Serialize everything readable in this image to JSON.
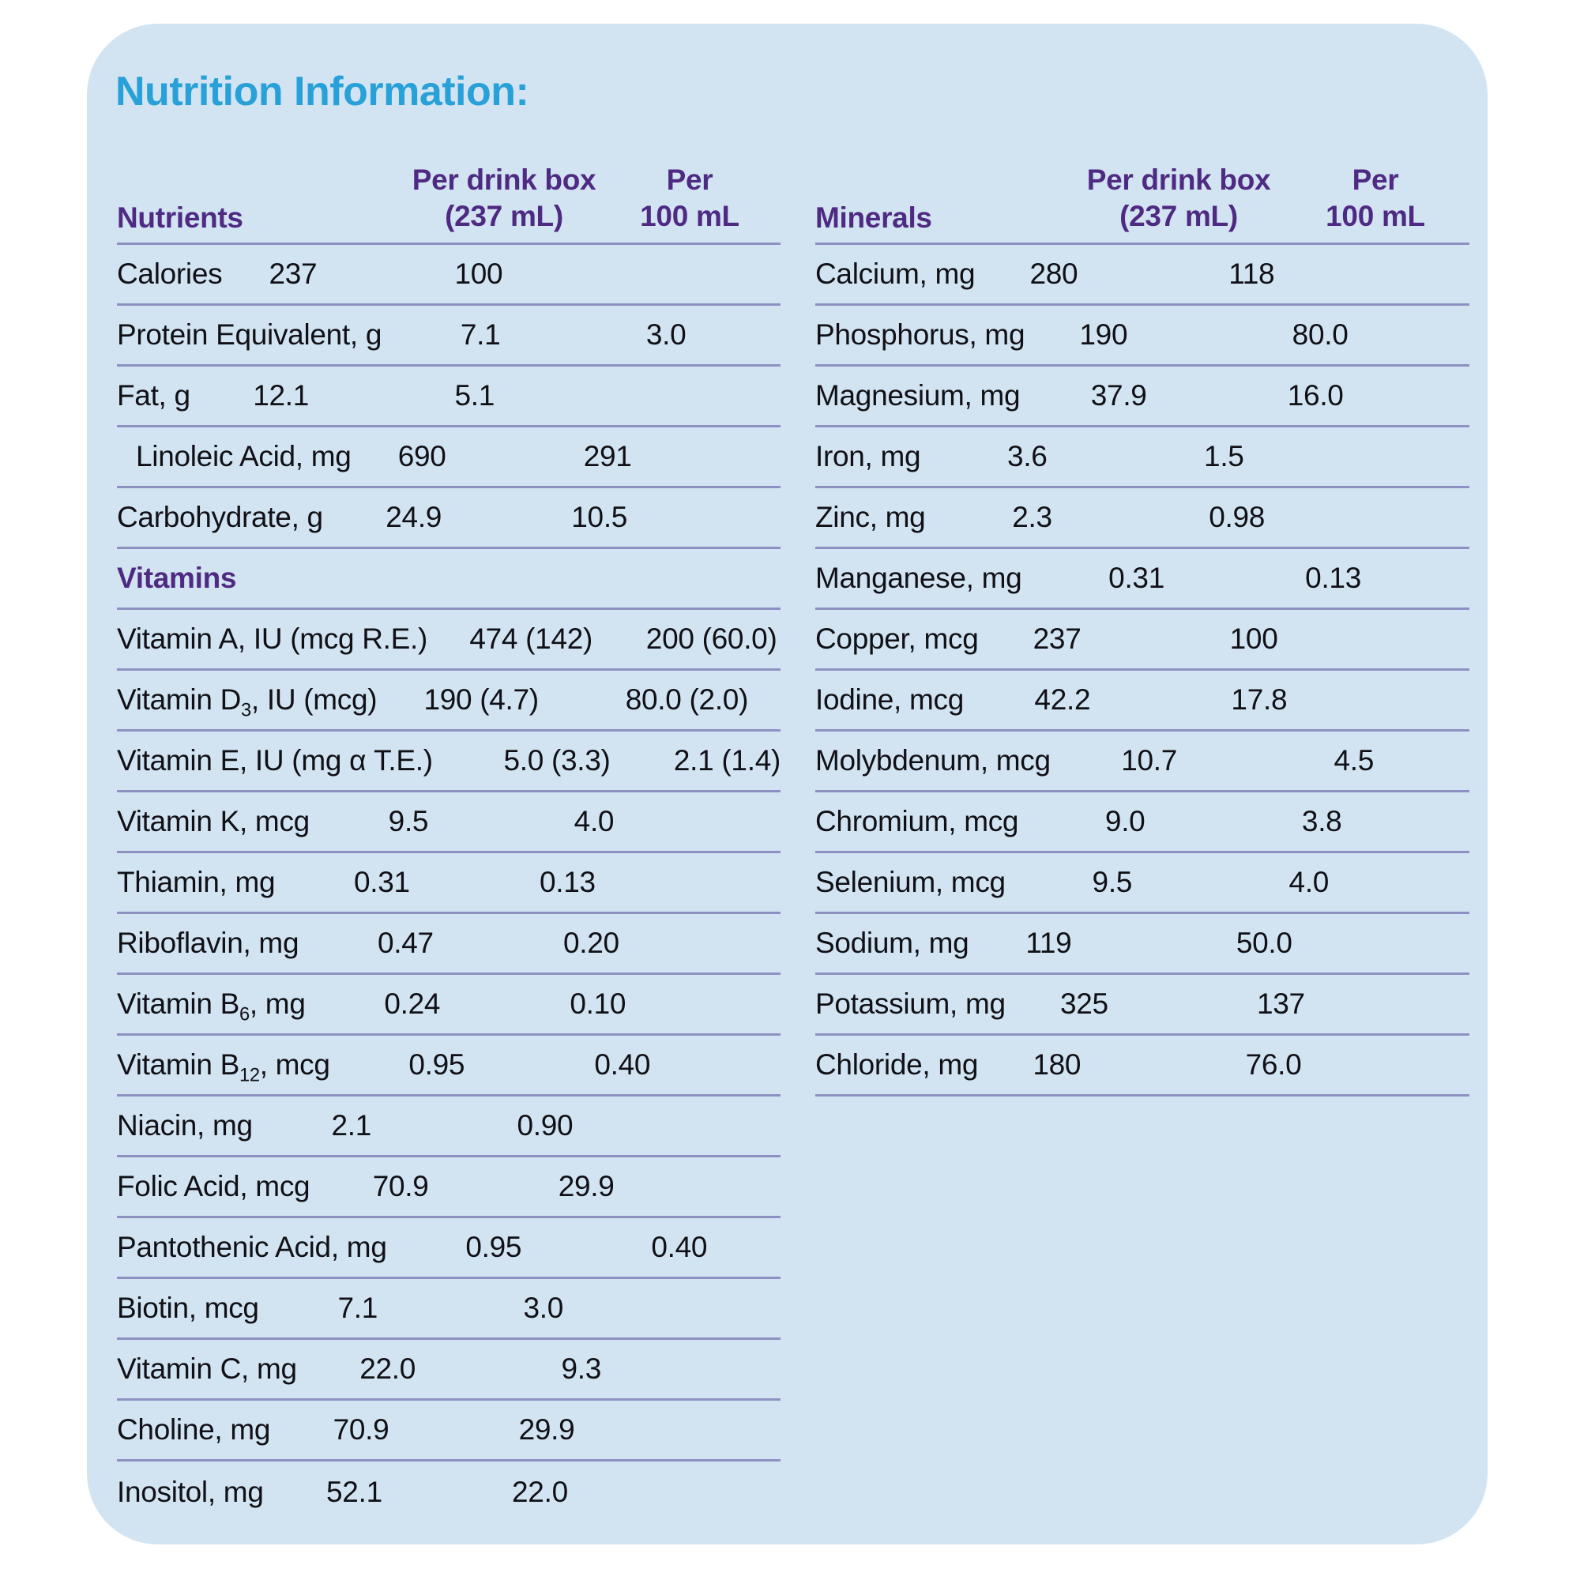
{
  "title": "Nutrition Information:",
  "colors": {
    "card_bg": "#d2e4f2",
    "title": "#28a0d8",
    "header_purple": "#4f2a82",
    "text": "#101016",
    "line": "#8d91c2"
  },
  "left_table": {
    "header": "Nutrients",
    "col1": {
      "line1": "Per drink box",
      "line2": "(237 mL)"
    },
    "col2": {
      "line1": "Per",
      "line2": "100 mL"
    },
    "last_row_border": false,
    "rows": [
      {
        "label": "Calories",
        "per_box": "237",
        "per_100": "100"
      },
      {
        "label": "Protein Equivalent, g",
        "per_box": "7.1",
        "per_100": "3.0"
      },
      {
        "label": "Fat, g",
        "per_box": "12.1",
        "per_100": "5.1"
      },
      {
        "label": "Linoleic Acid, mg",
        "indent": true,
        "per_box": "690",
        "per_100": "291"
      },
      {
        "label": "Carbohydrate, g",
        "per_box": "24.9",
        "per_100": "10.5"
      },
      {
        "label": "Vitamins",
        "section": true
      },
      {
        "label": "Vitamin A, IU (mcg R.E.)",
        "per_box": "474 (142)",
        "per_100": "200 (60.0)"
      },
      {
        "label": "Vitamin D~3~, IU (mcg)",
        "per_box": "190 (4.7)",
        "per_100": "80.0 (2.0)"
      },
      {
        "label": "Vitamin E, IU (mg α T.E.)",
        "per_box": "5.0 (3.3)",
        "per_100": "2.1 (1.4)"
      },
      {
        "label": "Vitamin K, mcg",
        "per_box": "9.5",
        "per_100": "4.0"
      },
      {
        "label": "Thiamin, mg",
        "per_box": "0.31",
        "per_100": "0.13"
      },
      {
        "label": "Riboflavin, mg",
        "per_box": "0.47",
        "per_100": "0.20"
      },
      {
        "label": "Vitamin B~6~, mg",
        "per_box": "0.24",
        "per_100": "0.10"
      },
      {
        "label": "Vitamin B~12~, mcg",
        "per_box": "0.95",
        "per_100": "0.40"
      },
      {
        "label": "Niacin, mg",
        "per_box": "2.1",
        "per_100": "0.90"
      },
      {
        "label": "Folic Acid, mcg",
        "per_box": "70.9",
        "per_100": "29.9"
      },
      {
        "label": "Pantothenic Acid, mg",
        "per_box": "0.95",
        "per_100": "0.40"
      },
      {
        "label": "Biotin, mcg",
        "per_box": "7.1",
        "per_100": "3.0"
      },
      {
        "label": "Vitamin C, mg",
        "per_box": "22.0",
        "per_100": "9.3"
      },
      {
        "label": "Choline, mg",
        "per_box": "70.9",
        "per_100": "29.9"
      },
      {
        "label": "Inositol, mg",
        "per_box": "52.1",
        "per_100": "22.0"
      }
    ]
  },
  "right_table": {
    "header": "Minerals",
    "col1": {
      "line1": "Per drink box",
      "line2": "(237 mL)"
    },
    "col2": {
      "line1": "Per",
      "line2": "100 mL"
    },
    "last_row_border": true,
    "rows": [
      {
        "label": "Calcium, mg",
        "per_box": "280",
        "per_100": "118"
      },
      {
        "label": "Phosphorus, mg",
        "per_box": "190",
        "per_100": "80.0"
      },
      {
        "label": "Magnesium, mg",
        "per_box": "37.9",
        "per_100": "16.0"
      },
      {
        "label": "Iron, mg",
        "per_box": "3.6",
        "per_100": "1.5"
      },
      {
        "label": "Zinc, mg",
        "per_box": "2.3",
        "per_100": "0.98"
      },
      {
        "label": "Manganese, mg",
        "per_box": "0.31",
        "per_100": "0.13"
      },
      {
        "label": "Copper, mcg",
        "per_box": "237",
        "per_100": "100"
      },
      {
        "label": "Iodine, mcg",
        "per_box": "42.2",
        "per_100": "17.8"
      },
      {
        "label": "Molybdenum, mcg",
        "per_box": "10.7",
        "per_100": "4.5"
      },
      {
        "label": "Chromium, mcg",
        "per_box": "9.0",
        "per_100": "3.8"
      },
      {
        "label": "Selenium, mcg",
        "per_box": "9.5",
        "per_100": "4.0"
      },
      {
        "label": "Sodium, mg",
        "per_box": "119",
        "per_100": "50.0"
      },
      {
        "label": "Potassium, mg",
        "per_box": "325",
        "per_100": "137"
      },
      {
        "label": "Chloride, mg",
        "per_box": "180",
        "per_100": "76.0"
      }
    ]
  }
}
